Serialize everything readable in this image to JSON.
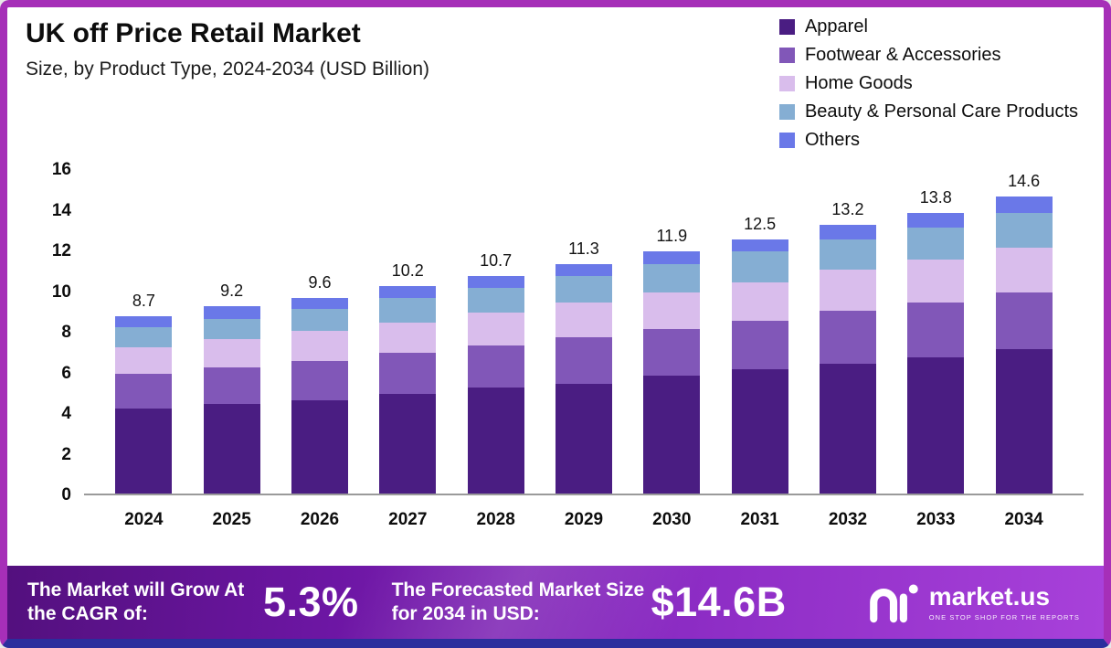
{
  "header": {
    "title": "UK off Price Retail Market",
    "subtitle": "Size, by Product Type, 2024-2034 (USD Billion)"
  },
  "chart_data": {
    "type": "bar",
    "stacked": true,
    "title": "UK off Price Retail Market",
    "subtitle": "Size, by Product Type, 2024-2034 (USD Billion)",
    "unit": "USD Billion",
    "categories": [
      "2024",
      "2025",
      "2026",
      "2027",
      "2028",
      "2029",
      "2030",
      "2031",
      "2032",
      "2033",
      "2034"
    ],
    "series": [
      {
        "name": "Apparel",
        "color": "#4a1d82",
        "values": [
          4.2,
          4.4,
          4.6,
          4.9,
          5.2,
          5.4,
          5.8,
          6.1,
          6.4,
          6.7,
          7.1
        ]
      },
      {
        "name": "Footwear & Accessories",
        "color": "#8157b8",
        "values": [
          1.7,
          1.8,
          1.9,
          2.0,
          2.1,
          2.3,
          2.3,
          2.4,
          2.6,
          2.7,
          2.8
        ]
      },
      {
        "name": "Home Goods",
        "color": "#d9bdec",
        "values": [
          1.3,
          1.4,
          1.5,
          1.5,
          1.6,
          1.7,
          1.8,
          1.9,
          2.0,
          2.1,
          2.2
        ]
      },
      {
        "name": "Beauty & Personal Care Products",
        "color": "#85aed3",
        "values": [
          1.0,
          1.0,
          1.1,
          1.2,
          1.2,
          1.3,
          1.4,
          1.5,
          1.5,
          1.6,
          1.7
        ]
      },
      {
        "name": "Others",
        "color": "#6a78e8",
        "values": [
          0.5,
          0.6,
          0.5,
          0.6,
          0.6,
          0.6,
          0.6,
          0.6,
          0.7,
          0.7,
          0.8
        ]
      }
    ],
    "totals": [
      8.7,
      9.2,
      9.6,
      10.2,
      10.7,
      11.3,
      11.9,
      12.5,
      13.2,
      13.8,
      14.6
    ],
    "ylim": [
      0,
      16
    ],
    "yticks": [
      0,
      2,
      4,
      6,
      8,
      10,
      12,
      14,
      16
    ],
    "xlabel": "",
    "ylabel": "",
    "grid": false,
    "legend_position": "top-right"
  },
  "banner": {
    "cagr_label": "The Market will Grow At the CAGR of:",
    "cagr_value": "5.3%",
    "forecast_label": "The Forecasted Market Size for 2034 in USD:",
    "forecast_value": "$14.6B",
    "logo_text": "market.us",
    "logo_tagline": "ONE STOP SHOP FOR THE REPORTS"
  },
  "frame": {
    "border_color": "#a62fb8",
    "bottom_strip_color": "#2b2e9d"
  }
}
